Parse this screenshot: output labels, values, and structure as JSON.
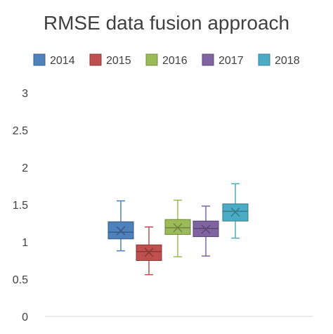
{
  "chart_data": {
    "type": "box",
    "title": "RMSE data fusion approach",
    "xlabel": "",
    "ylabel": "",
    "ylim": [
      0,
      3
    ],
    "yticks": [
      "0",
      "0.5",
      "1",
      "1.5",
      "2",
      "2.5",
      "3"
    ],
    "grid": false,
    "legend_position": "top",
    "series": [
      {
        "name": "2014",
        "color": "#4F81BD",
        "min": 0.88,
        "q1": 1.04,
        "median": 1.13,
        "mean": 1.15,
        "q3": 1.27,
        "max": 1.55
      },
      {
        "name": "2015",
        "color": "#C0504D",
        "min": 0.56,
        "q1": 0.75,
        "median": 0.87,
        "mean": 0.86,
        "q3": 0.96,
        "max": 1.2
      },
      {
        "name": "2016",
        "color": "#9BBB59",
        "min": 0.8,
        "q1": 1.1,
        "median": 1.19,
        "mean": 1.19,
        "q3": 1.3,
        "max": 1.56
      },
      {
        "name": "2017",
        "color": "#8064A2",
        "min": 0.81,
        "q1": 1.07,
        "median": 1.18,
        "mean": 1.17,
        "q3": 1.28,
        "max": 1.48
      },
      {
        "name": "2018",
        "color": "#4BACC6",
        "min": 1.05,
        "q1": 1.28,
        "median": 1.41,
        "mean": 1.4,
        "q3": 1.51,
        "max": 1.78
      }
    ]
  }
}
